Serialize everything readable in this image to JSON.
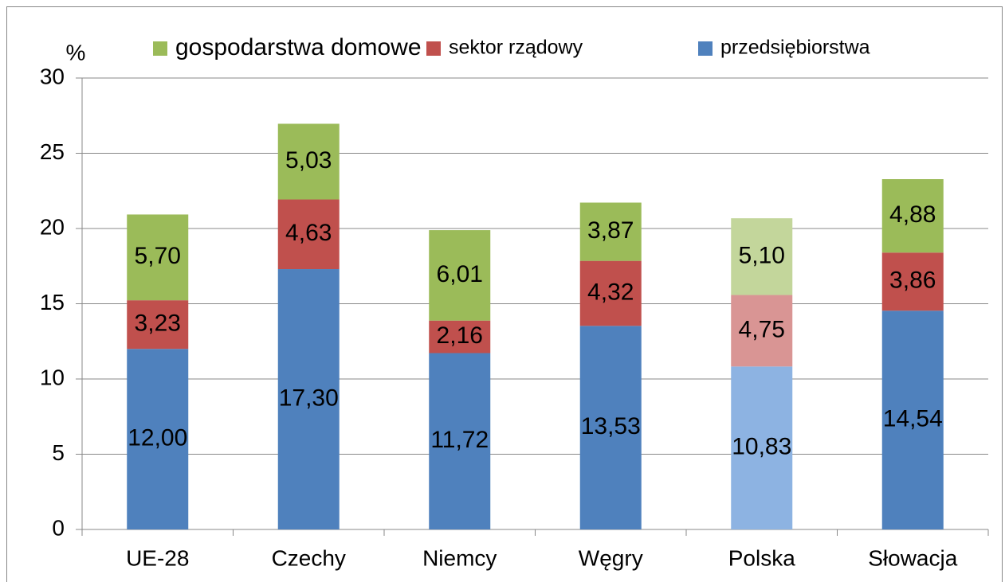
{
  "chart_data": {
    "type": "stacked_bar",
    "y_label": "%",
    "categories": [
      "UE-28",
      "Czechy",
      "Niemcy",
      "Węgry",
      "Polska",
      "Słowacja"
    ],
    "ylim": [
      0,
      30
    ],
    "yticks": [
      0,
      5,
      10,
      15,
      20,
      25,
      30
    ],
    "grid": true,
    "series": [
      {
        "name": "przedsiębiorstwa",
        "color": "#4f81bd",
        "colors": [
          "#4f81bd",
          "#4f81bd",
          "#4f81bd",
          "#4f81bd",
          "#8db3e2",
          "#4f81bd"
        ],
        "values": [
          12.0,
          17.3,
          11.72,
          13.53,
          10.83,
          14.54
        ],
        "value_labels": [
          "12,00",
          "17,30",
          "11,72",
          "13,53",
          "10,83",
          "14,54"
        ]
      },
      {
        "name": "sektor rządowy",
        "color": "#c0504d",
        "colors": [
          "#c0504d",
          "#c0504d",
          "#c0504d",
          "#c0504d",
          "#d99594",
          "#c0504d"
        ],
        "values": [
          3.23,
          4.63,
          2.16,
          4.32,
          4.75,
          3.86
        ],
        "value_labels": [
          "3,23",
          "4,63",
          "2,16",
          "4,32",
          "4,75",
          "3,86"
        ]
      },
      {
        "name": "gospodarstwa domowe",
        "color": "#9bbb59",
        "colors": [
          "#9bbb59",
          "#9bbb59",
          "#9bbb59",
          "#9bbb59",
          "#c3d69b",
          "#9bbb59"
        ],
        "values": [
          5.7,
          5.03,
          6.01,
          3.87,
          5.1,
          4.88
        ],
        "value_labels": [
          "5,70",
          "5,03",
          "6,01",
          "3,87",
          "5,10",
          "4,88"
        ]
      }
    ]
  }
}
